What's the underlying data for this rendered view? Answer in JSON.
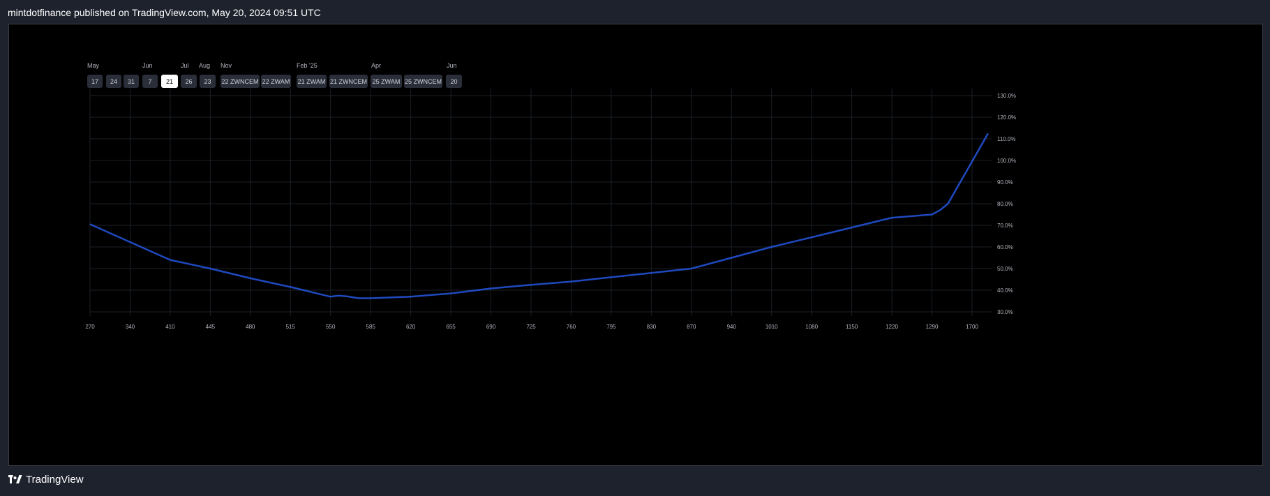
{
  "header": {
    "published_text": "mintdotfinance published on TradingView.com, May 20, 2024 09:51 UTC"
  },
  "footer": {
    "brand": "TradingView",
    "logo_icon": "tradingview-logo-icon"
  },
  "month_labels": [
    "May",
    "Jun",
    "Jul",
    "Aug",
    "Nov",
    "Feb '25",
    "Apr",
    "Jun"
  ],
  "date_buttons": [
    {
      "label": "17",
      "selected": false
    },
    {
      "label": "24",
      "selected": false
    },
    {
      "label": "31",
      "selected": false
    },
    {
      "label": "7",
      "selected": false
    },
    {
      "label": "21",
      "selected": true
    },
    {
      "label": "26",
      "selected": false
    },
    {
      "label": "23",
      "selected": false
    },
    {
      "label": "22 ZWNCEM",
      "selected": false
    },
    {
      "label": "22 ZWAM",
      "selected": false
    },
    {
      "label": "21 ZWAM",
      "selected": false
    },
    {
      "label": "21 ZWNCEM",
      "selected": false
    },
    {
      "label": "25 ZWAM",
      "selected": false
    },
    {
      "label": "25 ZWNCEM",
      "selected": false
    },
    {
      "label": "20",
      "selected": false
    }
  ],
  "chart_data": {
    "type": "line",
    "title": "",
    "xlabel": "",
    "ylabel": "",
    "x_ticks": [
      "270",
      "340",
      "410",
      "445",
      "480",
      "515",
      "550",
      "585",
      "620",
      "655",
      "690",
      "725",
      "760",
      "795",
      "830",
      "870",
      "940",
      "1010",
      "1080",
      "1150",
      "1220",
      "1290",
      "1700"
    ],
    "y_ticks": [
      "30.0%",
      "40.0%",
      "50.0%",
      "60.0%",
      "70.0%",
      "80.0%",
      "90.0%",
      "100.0%",
      "110.0%",
      "120.0%",
      "130.0%"
    ],
    "ylim": [
      30,
      130
    ],
    "grid": true,
    "line_color": "#2962ff",
    "series": [
      {
        "x_index": [
          0,
          2,
          3,
          4,
          5,
          6,
          6.2,
          6.4,
          6.7,
          7,
          8,
          9,
          10,
          11,
          12,
          13,
          14,
          15,
          16,
          17,
          18,
          19,
          20,
          21,
          21.2,
          21.4,
          22.4
        ],
        "values": [
          70.5,
          54,
          50,
          45.5,
          41.5,
          37,
          37.5,
          37.2,
          36.3,
          36.3,
          37,
          38.5,
          40.8,
          42.5,
          44,
          46,
          48,
          50,
          55,
          60,
          64.5,
          69,
          73.5,
          75,
          77,
          80,
          112.5
        ]
      }
    ]
  }
}
